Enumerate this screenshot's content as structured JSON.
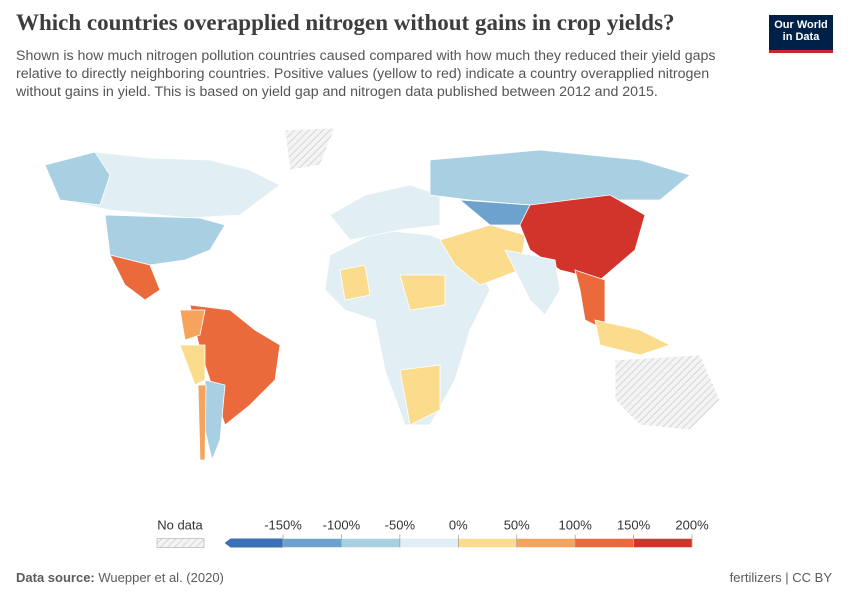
{
  "header": {
    "title": "Which countries overapplied nitrogen without gains in crop yields?",
    "subtitle": "Shown is how much nitrogen pollution countries caused compared with how much they reduced their yield gaps relative to directly neighboring countries. Positive values (yellow to red) indicate a country overapplied nitrogen without gains in yield. This is based on yield gap and nitrogen data published between 2012 and 2015.",
    "logo": [
      "Our World",
      "in Data"
    ]
  },
  "legend": {
    "no_data_label": "No data",
    "ticks": [
      {
        "value": -150,
        "label": "-150%"
      },
      {
        "value": -100,
        "label": "-100%"
      },
      {
        "value": -50,
        "label": "-50%"
      },
      {
        "value": 0,
        "label": "0%"
      },
      {
        "value": 50,
        "label": "50%"
      },
      {
        "value": 100,
        "label": "100%"
      },
      {
        "value": 150,
        "label": "150%"
      },
      {
        "value": 200,
        "label": "200%"
      }
    ],
    "colors": [
      "#3b6fb6",
      "#6ca2cd",
      "#a9d0e2",
      "#e1eff5",
      "#fbdc8c",
      "#f6a45c",
      "#ea6a3c",
      "#d2342b"
    ]
  },
  "footer": {
    "source_label": "Data source:",
    "source": "Wuepper et al. (2020)",
    "right": "fertilizers | CC BY"
  }
}
